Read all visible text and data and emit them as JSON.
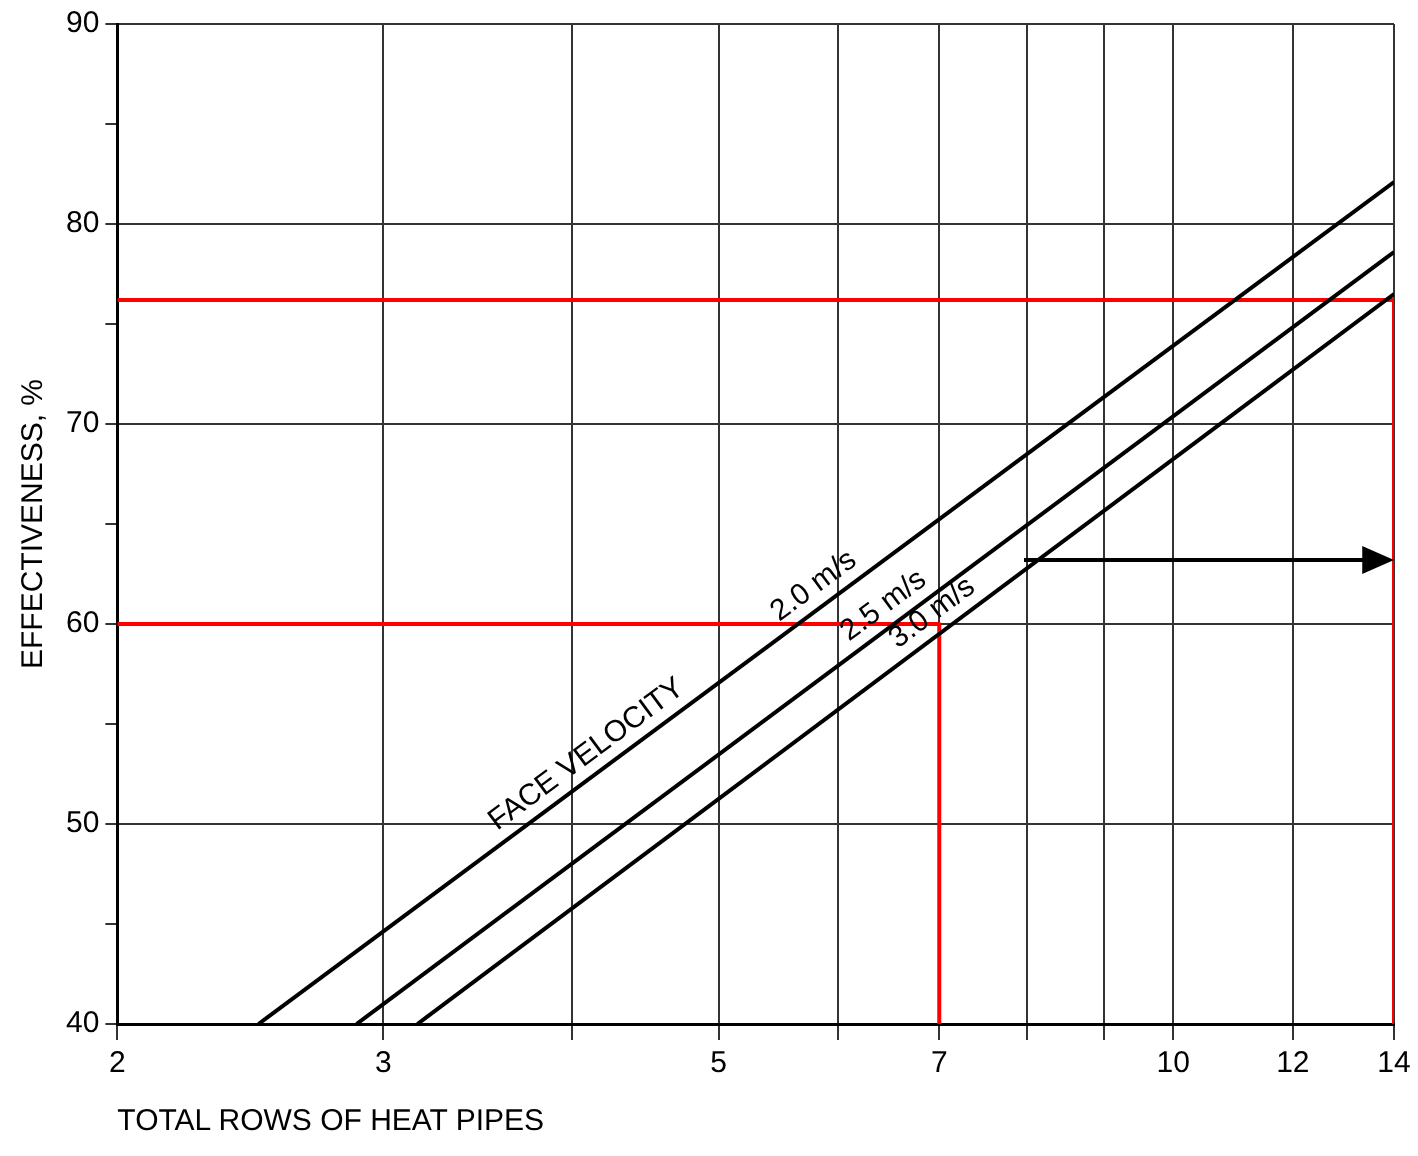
{
  "chart_data": {
    "type": "line",
    "xlabel": "TOTAL ROWS OF HEAT PIPES",
    "ylabel": "EFFECTIVENESS, %",
    "log": "x",
    "xlim": [
      2,
      14
    ],
    "ylim": [
      40,
      90
    ],
    "xticks": [
      2,
      3,
      {
        "value": 4,
        "label": null
      },
      5,
      {
        "value": 6,
        "label": null
      },
      7,
      {
        "value": 8,
        "label": null
      },
      {
        "value": 9,
        "label": null
      },
      10,
      12,
      14
    ],
    "yticks": [
      40,
      {
        "value": 45,
        "label": null
      },
      50,
      {
        "value": 55,
        "label": null
      },
      60,
      {
        "value": 65,
        "label": null
      },
      70,
      {
        "value": 75,
        "label": null
      },
      80,
      {
        "value": 85,
        "label": null
      },
      90
    ],
    "grid": true,
    "legend": false,
    "marker": "none",
    "line_style": "solid",
    "annotations": [
      "FACE VELOCITY"
    ],
    "series": [
      {
        "name": "2.0 m/s",
        "color": "#000000",
        "x": [
          2.48,
          14
        ],
        "values": [
          40,
          82.1
        ]
      },
      {
        "name": "2.5 m/s",
        "color": "#000000",
        "x": [
          2.88,
          14
        ],
        "values": [
          40,
          78.6
        ]
      },
      {
        "name": "3.0 m/s",
        "color": "#000000",
        "x": [
          3.16,
          14
        ],
        "values": [
          40,
          76.5
        ]
      },
      {
        "color": "#ff0000",
        "x": [
          2,
          7,
          7
        ],
        "values": [
          60,
          60,
          40
        ]
      },
      {
        "color": "#ff0000",
        "x": [
          2,
          14,
          14
        ],
        "values": [
          76.2,
          76.2,
          40
        ]
      }
    ]
  }
}
